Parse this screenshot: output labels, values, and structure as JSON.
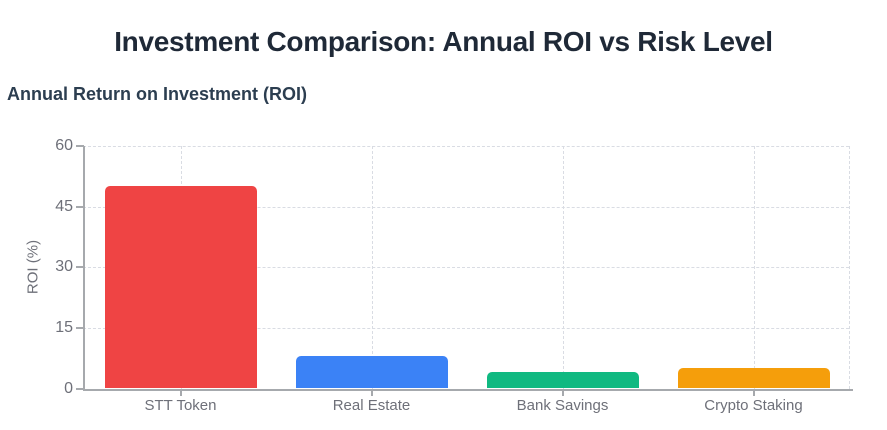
{
  "chart_data": {
    "type": "bar",
    "title": "Investment Comparison: Annual ROI vs Risk Level",
    "subtitle": "Annual Return on Investment (ROI)",
    "categories": [
      "STT Token",
      "Real Estate",
      "Bank Savings",
      "Crypto Staking"
    ],
    "values": [
      50,
      8,
      4,
      5
    ],
    "bar_colors": [
      "#ef4444",
      "#3b82f6",
      "#10b981",
      "#f59e0b"
    ],
    "xlabel": "",
    "ylabel": "ROI (%)",
    "ylim": [
      0,
      60
    ],
    "yticks": [
      0,
      15,
      30,
      45,
      60
    ],
    "units": "%",
    "grid": "dashed horizontal lines at y ticks and dashed vertical lines at category centers",
    "legend": "none"
  },
  "colors": {
    "background": "#ffffff",
    "title_text": "#1f2937",
    "subtitle_text": "#2c3e50",
    "tick_label": "#6e7079",
    "gridline": "#d9dce3",
    "axis_line": "#a6a9ad"
  }
}
